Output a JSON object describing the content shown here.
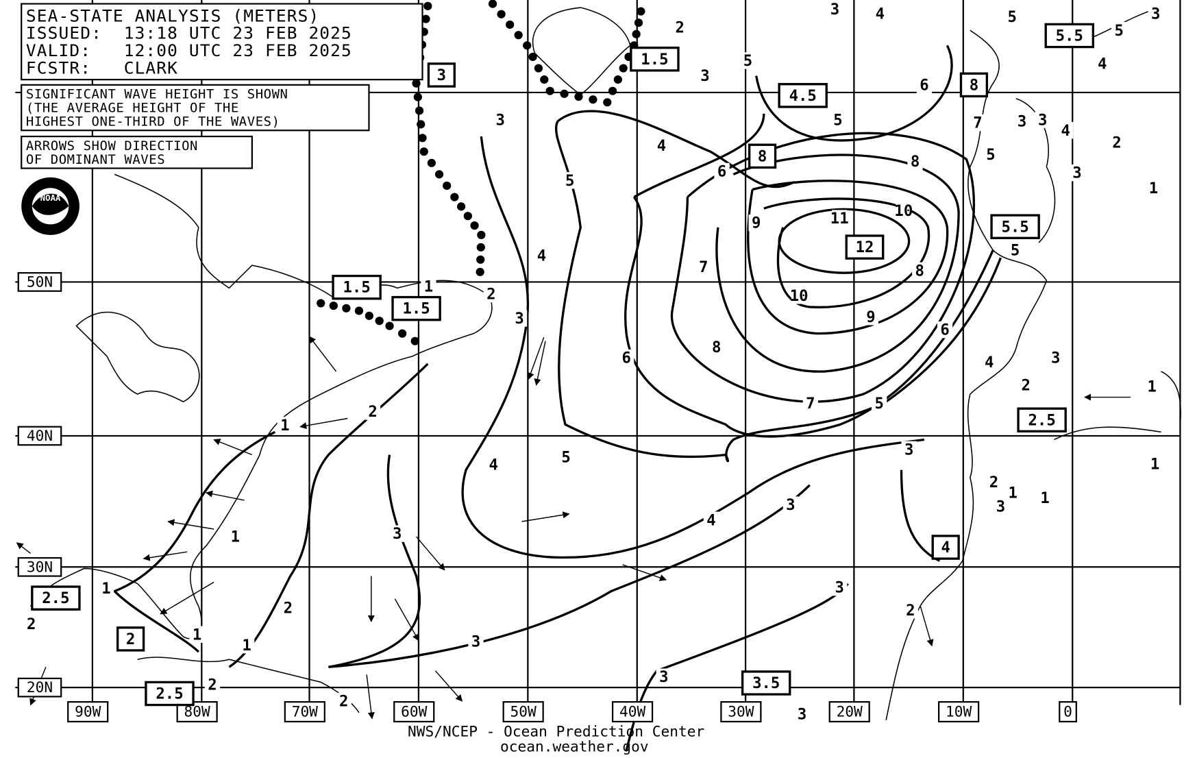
{
  "header": {
    "lines": [
      "SEA-STATE ANALYSIS (METERS)",
      "ISSUED:  13:18 UTC 23 FEB 2025",
      "VALID:   12:00 UTC 23 FEB 2025",
      "FCSTR:   CLARK"
    ]
  },
  "notes": {
    "wave_height": [
      "SIGNIFICANT WAVE HEIGHT IS SHOWN",
      "(THE AVERAGE HEIGHT OF THE",
      "HIGHEST ONE-THIRD OF THE WAVES)"
    ],
    "arrows": [
      "ARROWS SHOW DIRECTION",
      "OF DOMINANT WAVES"
    ]
  },
  "logo": "NOAA",
  "latitude_labels": [
    "50N",
    "40N",
    "30N",
    "20N"
  ],
  "longitude_labels": [
    "90W",
    "80W",
    "70W",
    "60W",
    "50W",
    "40W",
    "30W",
    "20W",
    "10W",
    "0"
  ],
  "contour_labels": [
    "3",
    "4",
    "2",
    "5",
    "5",
    "3",
    "4",
    "3",
    "5",
    "6",
    "5",
    "3",
    "7",
    "3",
    "3",
    "4",
    "2",
    "4",
    "5",
    "6",
    "8",
    "5",
    "3",
    "1",
    "10",
    "11",
    "9",
    "4",
    "7",
    "8",
    "5",
    "2",
    "1",
    "10",
    "9",
    "3",
    "6",
    "8",
    "6",
    "3",
    "4",
    "2",
    "1",
    "7",
    "5",
    "2",
    "1",
    "3",
    "5",
    "4",
    "1",
    "3",
    "2",
    "1",
    "3",
    "1",
    "4",
    "1",
    "3",
    "1",
    "3",
    "2",
    "2",
    "2",
    "1",
    "3",
    "1",
    "3",
    "2",
    "2",
    "3"
  ],
  "boxed_labels": [
    "3",
    "1.5",
    "4.5",
    "8",
    "5.5",
    "8",
    "12",
    "5.5",
    "1.5",
    "1.5",
    "2.5",
    "4",
    "2.5",
    "2",
    "2.5",
    "3.5"
  ],
  "footer": [
    "NWS/NCEP - Ocean Prediction Center",
    "ocean.weather.gov"
  ]
}
